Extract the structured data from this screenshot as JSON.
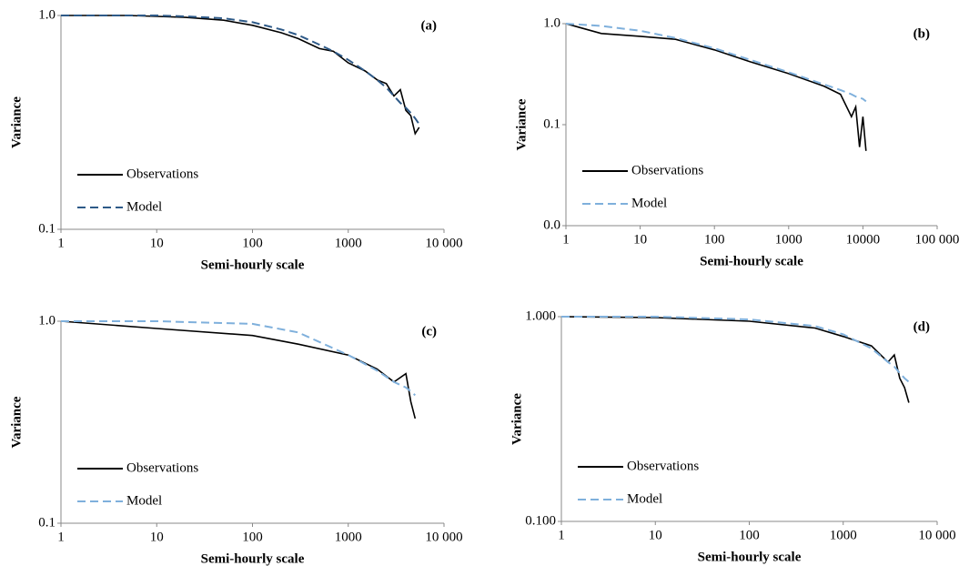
{
  "chart_data": [
    {
      "type": "line",
      "panel_label": "(a)",
      "x_label": "Semi-hourly scale",
      "y_label": "Variance",
      "xscale": "log",
      "yscale": "log",
      "legend": "lower left",
      "xlim": [
        1,
        10000
      ],
      "xticks": [
        1,
        10,
        100,
        1000,
        {
          "value": 10000,
          "label": "10 000"
        }
      ],
      "ylim": [
        0.1,
        1
      ],
      "yticks": [
        0.1,
        {
          "value": 1,
          "label": "1.0"
        }
      ],
      "x": [
        1,
        2,
        5,
        10,
        20,
        50,
        100,
        200,
        300,
        500,
        700,
        1000,
        1500,
        2000,
        2500,
        3000,
        3500,
        4000,
        4500,
        5000,
        5500
      ],
      "series": [
        {
          "name": "Observations",
          "color": "#000000",
          "dash": false,
          "values": [
            1.0,
            1.0,
            1.0,
            0.99,
            0.98,
            0.95,
            0.9,
            0.83,
            0.78,
            0.7,
            0.68,
            0.6,
            0.55,
            0.5,
            0.48,
            0.42,
            0.45,
            0.36,
            0.34,
            0.28,
            0.3
          ]
        },
        {
          "name": "Model",
          "color": "#2e5a88",
          "dash": true,
          "values": [
            1.0,
            1.0,
            1.0,
            1.0,
            0.99,
            0.97,
            0.93,
            0.86,
            0.81,
            0.73,
            0.68,
            0.62,
            0.55,
            0.5,
            0.46,
            0.42,
            0.39,
            0.37,
            0.35,
            0.33,
            0.31
          ]
        }
      ]
    },
    {
      "type": "line",
      "panel_label": "(b)",
      "x_label": "Semi-hourly scale",
      "y_label": "Variance",
      "xscale": "log",
      "yscale": "log",
      "legend": "lower left",
      "xlim": [
        1,
        100000
      ],
      "xticks": [
        1,
        10,
        100,
        1000,
        10000,
        {
          "value": 100000,
          "label": "100 000"
        }
      ],
      "ylim": [
        0.01,
        1
      ],
      "yticks": [
        {
          "value": 0.01,
          "label": "0.0"
        },
        0.1,
        {
          "value": 1,
          "label": "1.0"
        }
      ],
      "x": [
        1,
        3,
        10,
        30,
        100,
        300,
        1000,
        3000,
        5000,
        7000,
        8000,
        9000,
        10000,
        11000
      ],
      "series": [
        {
          "name": "Observations",
          "color": "#000000",
          "dash": false,
          "values": [
            1.0,
            0.8,
            0.75,
            0.7,
            0.55,
            0.42,
            0.32,
            0.24,
            0.2,
            0.12,
            0.15,
            0.06,
            0.12,
            0.055
          ]
        },
        {
          "name": "Model",
          "color": "#7fb0dc",
          "dash": true,
          "values": [
            1.0,
            0.95,
            0.85,
            0.72,
            0.57,
            0.44,
            0.33,
            0.25,
            0.22,
            0.2,
            0.19,
            0.185,
            0.18,
            0.17
          ]
        }
      ]
    },
    {
      "type": "line",
      "panel_label": "(c)",
      "x_label": "Semi-hourly scale",
      "y_label": "Variance",
      "xscale": "log",
      "yscale": "log",
      "legend": "lower left",
      "xlim": [
        1,
        10000
      ],
      "xticks": [
        1,
        10,
        100,
        1000,
        {
          "value": 10000,
          "label": "10 000"
        }
      ],
      "ylim": [
        0.1,
        1
      ],
      "yticks": [
        0.1,
        {
          "value": 1,
          "label": "1.0"
        }
      ],
      "x": [
        1,
        10,
        100,
        300,
        1000,
        2000,
        3000,
        4000,
        4500,
        5000
      ],
      "series": [
        {
          "name": "Observations",
          "color": "#000000",
          "dash": false,
          "values": [
            1.0,
            0.92,
            0.85,
            0.77,
            0.68,
            0.58,
            0.5,
            0.55,
            0.4,
            0.33
          ]
        },
        {
          "name": "Model",
          "color": "#7fb0dc",
          "dash": true,
          "values": [
            1.0,
            1.0,
            0.97,
            0.88,
            0.68,
            0.57,
            0.5,
            0.47,
            0.45,
            0.43
          ]
        }
      ]
    },
    {
      "type": "line",
      "panel_label": "(d)",
      "x_label": "Semi-hourly scale",
      "y_label": "Variance",
      "xscale": "log",
      "yscale": "log",
      "legend": "lower left",
      "xlim": [
        1,
        10000
      ],
      "xticks": [
        1,
        10,
        100,
        1000,
        {
          "value": 10000,
          "label": "10 000"
        }
      ],
      "ylim": [
        0.1,
        1
      ],
      "yticks": [
        {
          "value": 0.1,
          "label": "0.100"
        },
        {
          "value": 1,
          "label": "1.000"
        }
      ],
      "x": [
        1,
        10,
        100,
        500,
        1000,
        2000,
        3000,
        3500,
        4000,
        4500,
        5000
      ],
      "series": [
        {
          "name": "Observations",
          "color": "#000000",
          "dash": false,
          "values": [
            1.0,
            0.99,
            0.95,
            0.88,
            0.8,
            0.72,
            0.6,
            0.65,
            0.5,
            0.45,
            0.38
          ]
        },
        {
          "name": "Model",
          "color": "#7fb0dc",
          "dash": true,
          "values": [
            1.0,
            1.0,
            0.97,
            0.9,
            0.82,
            0.7,
            0.6,
            0.57,
            0.53,
            0.5,
            0.48
          ]
        }
      ]
    }
  ]
}
